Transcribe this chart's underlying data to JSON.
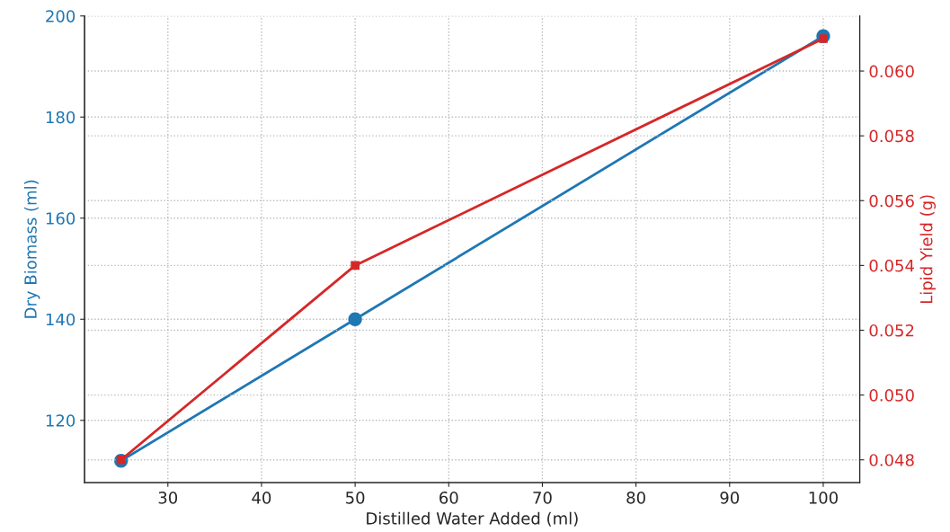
{
  "chart_data": {
    "type": "line",
    "xlabel": "Distilled Water Added (ml)",
    "ylabel": "Dry Biomass (ml)",
    "y2label": "Lipid Yield (g)",
    "x": [
      25,
      50,
      100
    ],
    "series": [
      {
        "color": "#1f77b4",
        "values": [
          112,
          140,
          196
        ],
        "marker": "circle"
      },
      {
        "color": "#d62728",
        "values": [
          0.048,
          0.054,
          0.061
        ],
        "axis": "y2",
        "marker": "square"
      }
    ],
    "xlim": [
      21.1,
      103.9
    ],
    "xticks": [
      30,
      40,
      50,
      60,
      70,
      80,
      90,
      100
    ],
    "ylim": [
      107.7,
      200
    ],
    "yticks": [
      120,
      140,
      160,
      180,
      200
    ],
    "y2lim": [
      0.0473,
      0.0617
    ],
    "y2ticks": [
      {
        "value": 0.048,
        "label": "0.048"
      },
      {
        "value": 0.05,
        "label": "0.050"
      },
      {
        "value": 0.052,
        "label": "0.052"
      },
      {
        "value": 0.054,
        "label": "0.054"
      },
      {
        "value": 0.056,
        "label": "0.056"
      },
      {
        "value": 0.058,
        "label": "0.058"
      },
      {
        "value": 0.06,
        "label": "0.060"
      }
    ],
    "grid": true,
    "line_style": "solid"
  }
}
